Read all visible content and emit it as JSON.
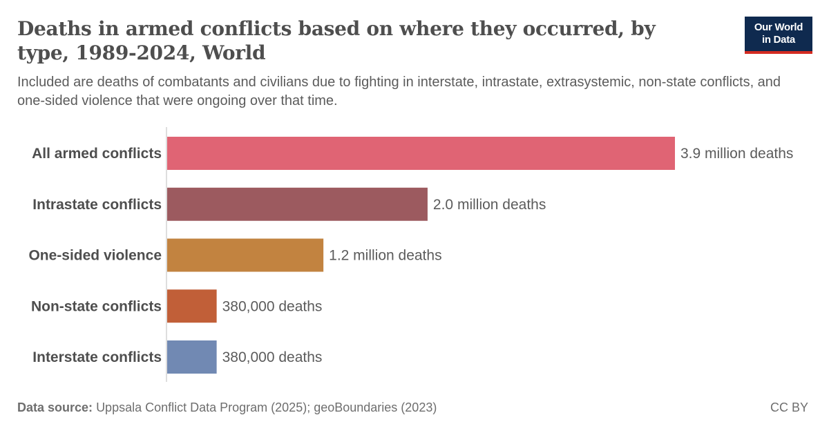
{
  "title": "Deaths in armed conflicts based on where they occurred, by type, 1989-2024, World",
  "subtitle": "Included are deaths of combatants and civilians due to fighting in interstate, intrastate, extrasystemic, non-state conflicts, and one-sided violence that were ongoing over that time.",
  "logo": {
    "line1": "Our World",
    "line2": "in Data"
  },
  "footer": {
    "source_label": "Data source:",
    "source_text": "Uppsala Conflict Data Program (2025); geoBoundaries (2023)",
    "license": "CC BY"
  },
  "chart_data": {
    "type": "bar",
    "orientation": "horizontal",
    "categories": [
      "All armed conflicts",
      "Intrastate conflicts",
      "One-sided violence",
      "Non-state conflicts",
      "Interstate conflicts"
    ],
    "values": [
      3900000,
      2000000,
      1200000,
      380000,
      380000
    ],
    "value_labels": [
      "3.9 million deaths",
      "2.0 million deaths",
      "1.2 million deaths",
      "380,000 deaths",
      "380,000 deaths"
    ],
    "colors": [
      "#e06474",
      "#9c5a5f",
      "#c28340",
      "#c15f38",
      "#7189b3"
    ],
    "xlim": [
      0,
      3900000
    ],
    "grid": false
  }
}
